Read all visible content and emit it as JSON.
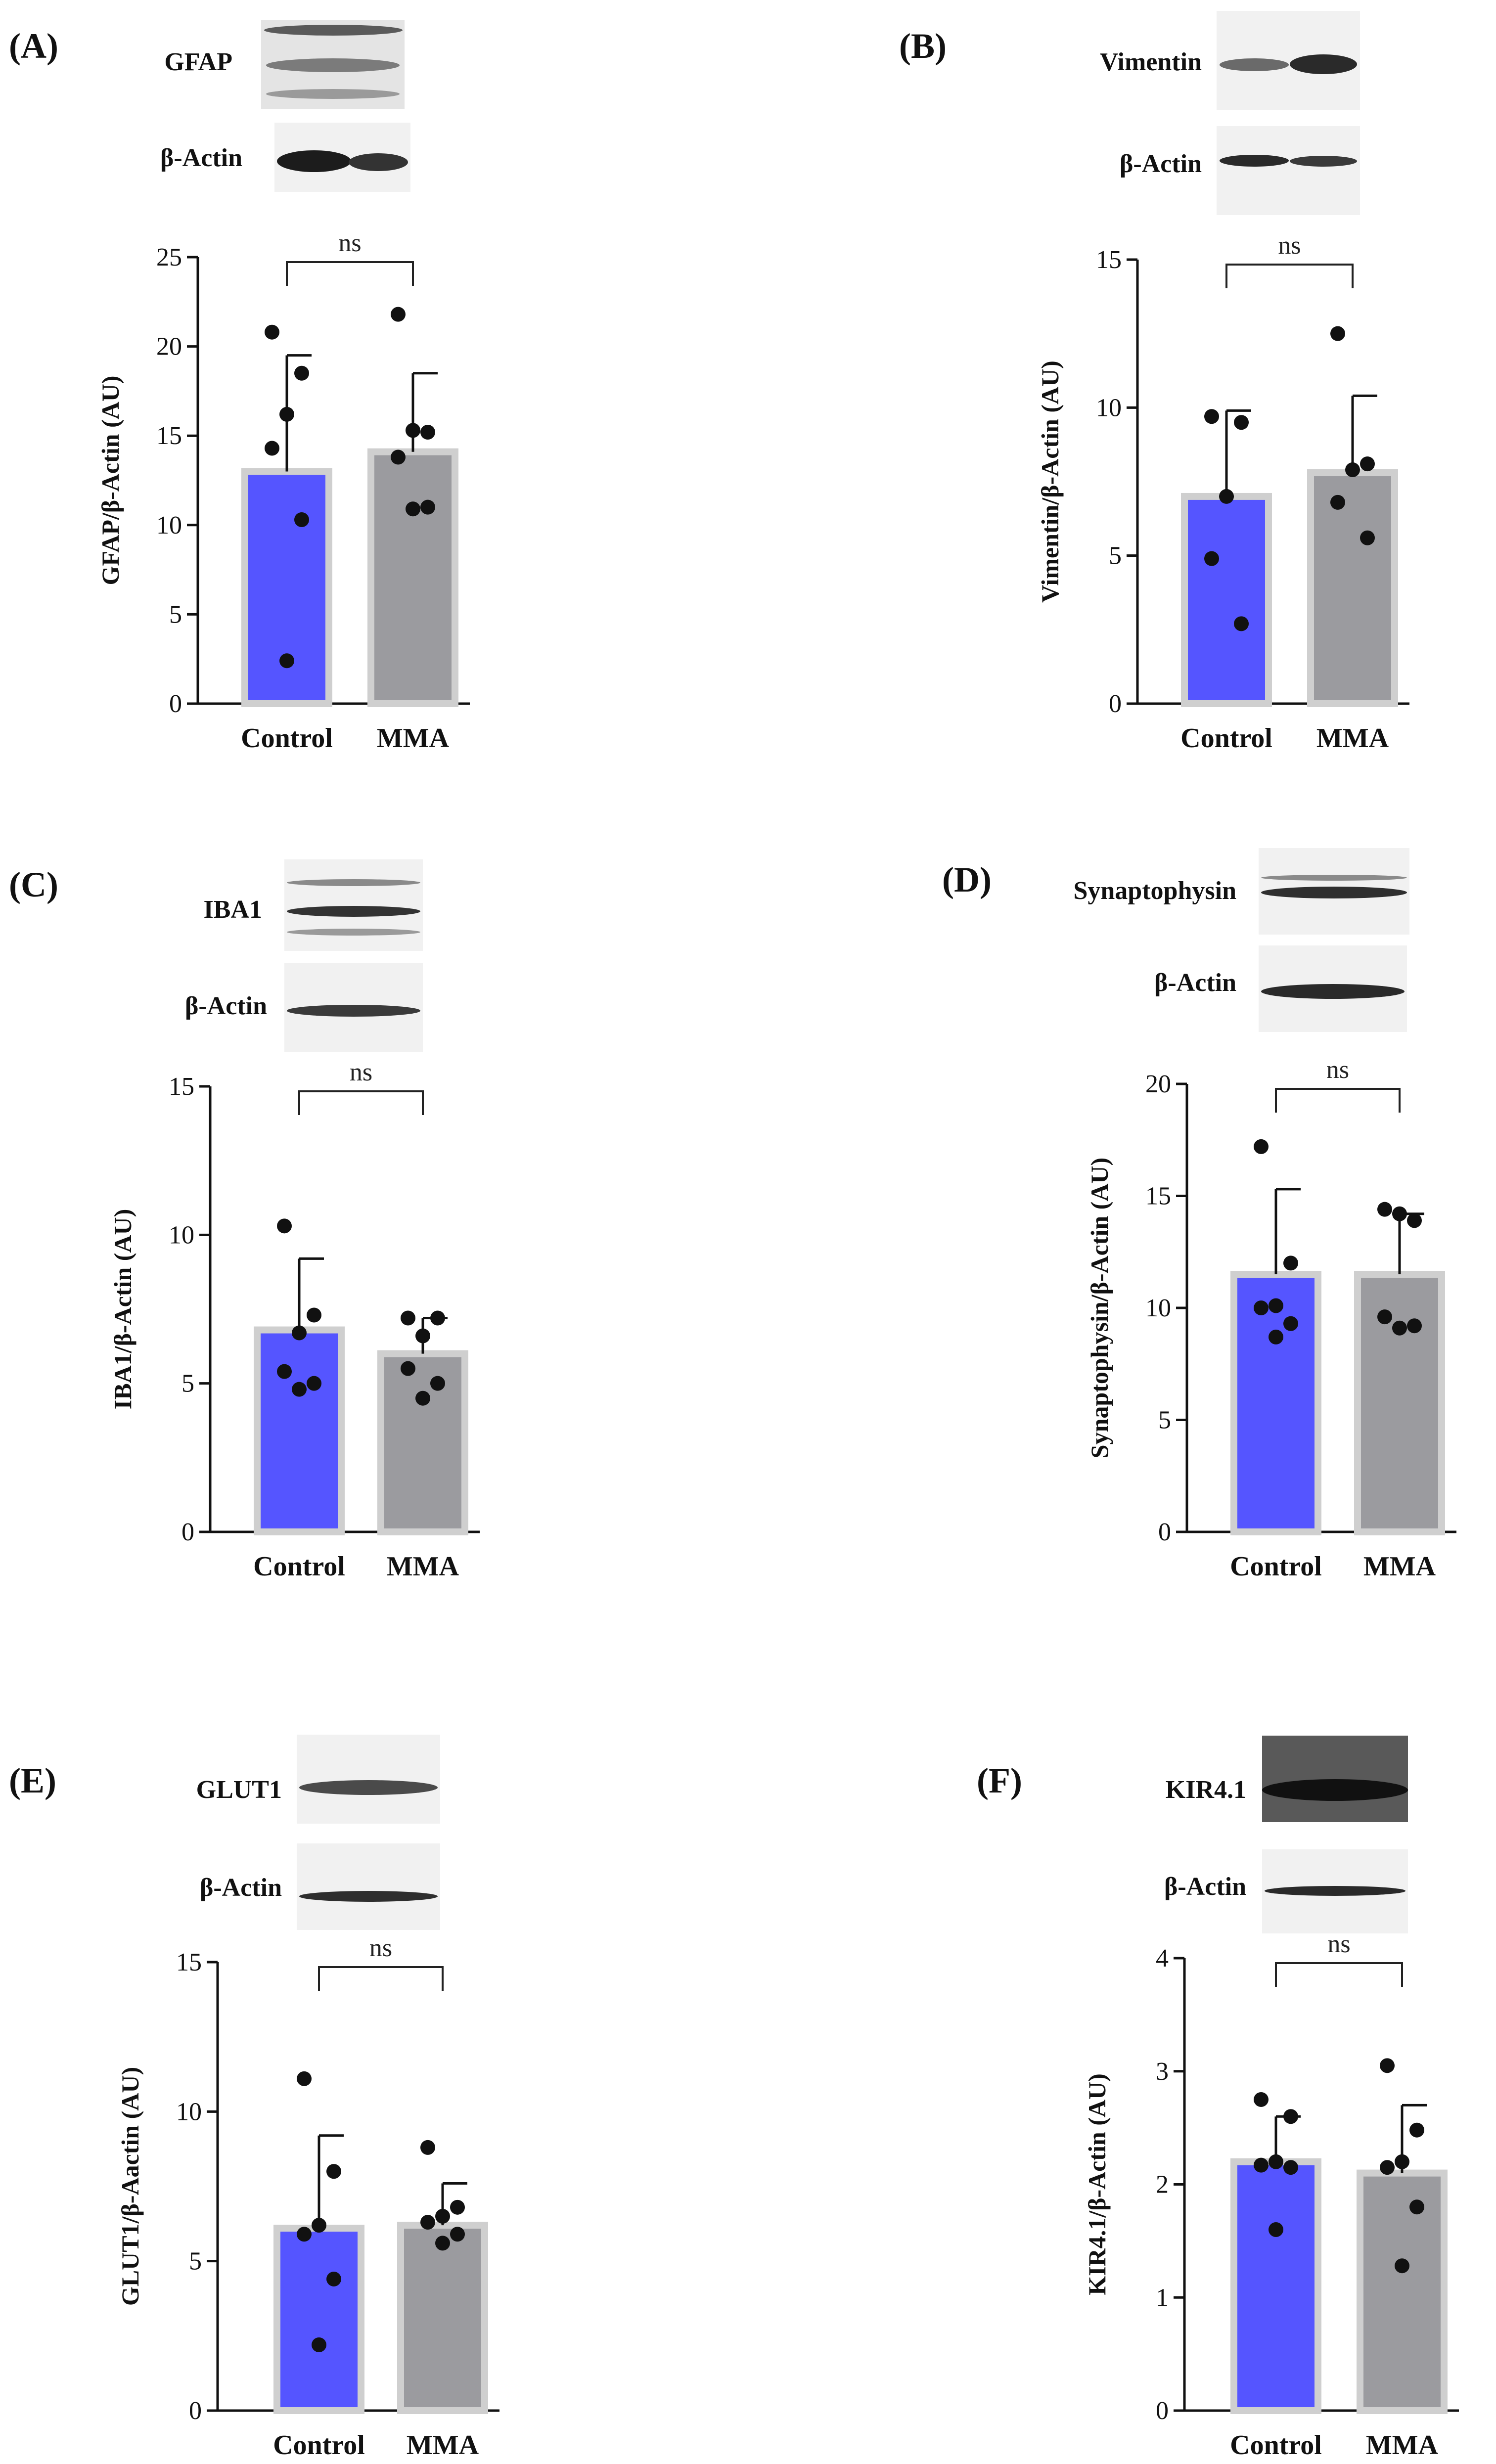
{
  "colors": {
    "control": "#5555ff",
    "mma": "#9b9b9f",
    "bar_edge": "#cfcfcf",
    "axis": "#111111"
  },
  "panels": [
    {
      "letter": "(A)",
      "blots": [
        {
          "label": "GFAP"
        },
        {
          "label": "β-Actin"
        }
      ],
      "chart_data": {
        "type": "bar",
        "title": "",
        "xlabel": "",
        "ylabel": "GFAP/β-Actin (AU)",
        "categories": [
          "Control",
          "MMA"
        ],
        "means": [
          13.0,
          14.1
        ],
        "sd": [
          6.5,
          4.4
        ],
        "points": [
          [
            20.8,
            18.5,
            16.2,
            14.3,
            10.3,
            2.4
          ],
          [
            21.8,
            15.2,
            15.3,
            13.8,
            11.0,
            10.9
          ]
        ],
        "ylim": [
          0,
          25
        ],
        "yticks": [
          0,
          5,
          10,
          15,
          20,
          25
        ],
        "significance": "ns"
      }
    },
    {
      "letter": "(B)",
      "blots": [
        {
          "label": "Vimentin"
        },
        {
          "label": "β-Actin"
        }
      ],
      "chart_data": {
        "type": "bar",
        "title": "",
        "xlabel": "",
        "ylabel": "Vimentin/β-Actin (AU)",
        "categories": [
          "Control",
          "MMA"
        ],
        "means": [
          7.0,
          7.8
        ],
        "sd": [
          2.9,
          2.6
        ],
        "points": [
          [
            9.7,
            9.5,
            7.0,
            4.9,
            2.7
          ],
          [
            12.5,
            8.1,
            7.9,
            6.8,
            5.6
          ]
        ],
        "ylim": [
          0,
          15
        ],
        "yticks": [
          0,
          5,
          10,
          15
        ],
        "significance": "ns"
      }
    },
    {
      "letter": "(C)",
      "blots": [
        {
          "label": "IBA1"
        },
        {
          "label": "β-Actin"
        }
      ],
      "chart_data": {
        "type": "bar",
        "title": "",
        "xlabel": "",
        "ylabel": "IBA1/β-Actin (AU)",
        "categories": [
          "Control",
          "MMA"
        ],
        "means": [
          6.8,
          6.0
        ],
        "sd": [
          2.4,
          1.2
        ],
        "points": [
          [
            10.3,
            7.3,
            6.7,
            5.4,
            5.0,
            4.8
          ],
          [
            7.2,
            7.2,
            6.6,
            5.5,
            5.0,
            4.5
          ]
        ],
        "ylim": [
          0,
          15
        ],
        "yticks": [
          0,
          5,
          10,
          15
        ],
        "significance": "ns"
      }
    },
    {
      "letter": "(D)",
      "blots": [
        {
          "label": "Synaptophysin"
        },
        {
          "label": "β-Actin"
        }
      ],
      "chart_data": {
        "type": "bar",
        "title": "",
        "xlabel": "",
        "ylabel": "Synaptophysin/β-Actin (AU)",
        "categories": [
          "Control",
          "MMA"
        ],
        "means": [
          11.5,
          11.5
        ],
        "sd": [
          3.8,
          2.7
        ],
        "points": [
          [
            17.2,
            12.0,
            10.1,
            10.0,
            9.3,
            8.7
          ],
          [
            14.4,
            13.9,
            14.2,
            9.6,
            9.2,
            9.1
          ]
        ],
        "ylim": [
          0,
          20
        ],
        "yticks": [
          0,
          5,
          10,
          15,
          20
        ],
        "significance": "ns"
      }
    },
    {
      "letter": "(E)",
      "blots": [
        {
          "label": "GLUT1"
        },
        {
          "label": "β-Actin"
        }
      ],
      "chart_data": {
        "type": "bar",
        "title": "",
        "xlabel": "",
        "ylabel": "GLUT1/β-Aactin (AU)",
        "categories": [
          "Control",
          "MMA"
        ],
        "means": [
          6.1,
          6.2
        ],
        "sd": [
          3.1,
          1.4
        ],
        "points": [
          [
            11.1,
            8.0,
            6.2,
            5.9,
            4.4,
            2.2
          ],
          [
            8.8,
            6.8,
            6.5,
            6.3,
            5.9,
            5.6
          ]
        ],
        "ylim": [
          0,
          15
        ],
        "yticks": [
          0,
          5,
          10,
          15
        ],
        "significance": "ns"
      }
    },
    {
      "letter": "(F)",
      "blots": [
        {
          "label": "KIR4.1"
        },
        {
          "label": "β-Actin"
        }
      ],
      "chart_data": {
        "type": "bar",
        "title": "",
        "xlabel": "",
        "ylabel": "KIR4.1/β-Actin (AU)",
        "categories": [
          "Control",
          "MMA"
        ],
        "means": [
          2.2,
          2.1
        ],
        "sd": [
          0.4,
          0.6
        ],
        "points": [
          [
            2.75,
            2.6,
            2.2,
            2.17,
            2.15,
            1.6
          ],
          [
            3.05,
            2.48,
            2.2,
            2.15,
            1.8,
            1.28
          ]
        ],
        "ylim": [
          0,
          4
        ],
        "yticks": [
          0,
          1,
          2,
          3,
          4
        ],
        "significance": "ns"
      }
    }
  ]
}
